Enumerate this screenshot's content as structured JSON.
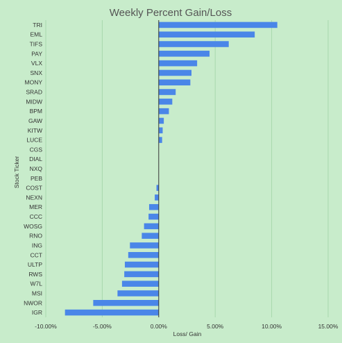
{
  "chart_data": {
    "type": "bar",
    "orientation": "horizontal",
    "title": "Weekly Percent Gain/Loss",
    "xlabel": "Loss/ Gain",
    "ylabel": "Stock Ticker",
    "xlim": [
      -10,
      15
    ],
    "x_ticks": [
      "-10.00%",
      "-5.00%",
      "0.00%",
      "5.00%",
      "10.00%",
      "15.00%"
    ],
    "x_tick_values": [
      -10,
      -5,
      0,
      5,
      10,
      15
    ],
    "grid": true,
    "bar_color": "#4a86e8",
    "categories": [
      "TRI",
      "EML",
      "TIFS",
      "PAY",
      "VLX",
      "SNX",
      "MONY",
      "SRAD",
      "MIDW",
      "BPM",
      "GAW",
      "KITW",
      "LUCE",
      "CGS",
      "DIAL",
      "NXQ",
      "PEB",
      "COST",
      "NEXN",
      "MER",
      "CCC",
      "WOSG",
      "RNO",
      "ING",
      "CCT",
      "ULTP",
      "RWS",
      "W7L",
      "MSI",
      "NWOR",
      "IGR"
    ],
    "values": [
      10.5,
      8.5,
      6.2,
      4.5,
      3.4,
      2.9,
      2.8,
      1.5,
      1.2,
      0.9,
      0.45,
      0.35,
      0.3,
      0,
      0,
      0,
      0,
      -0.2,
      -0.35,
      -0.85,
      -0.9,
      -1.3,
      -1.5,
      -2.55,
      -2.7,
      -3.0,
      -3.05,
      -3.25,
      -3.65,
      -5.8,
      -8.3
    ]
  }
}
